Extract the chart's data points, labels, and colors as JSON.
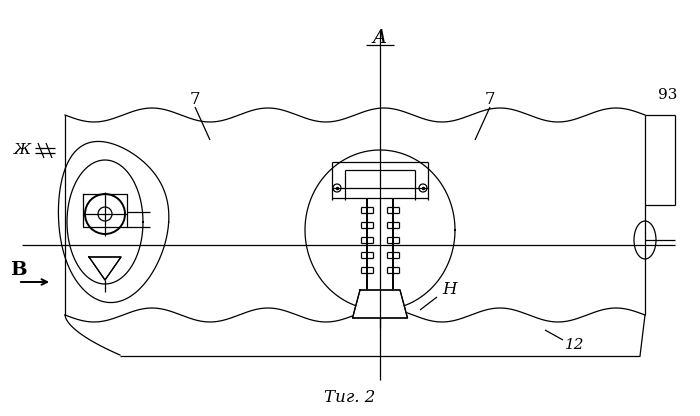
{
  "title": "Τиг. 2",
  "label_A": "A",
  "label_B": "B",
  "label_Zh": "Ж",
  "label_H": "H",
  "label_7a": "7",
  "label_7b": "7",
  "label_93": "93",
  "label_12": "12",
  "bg_color": "#ffffff",
  "line_color": "#000000",
  "fig_width": 7.0,
  "fig_height": 4.16,
  "dpi": 100
}
